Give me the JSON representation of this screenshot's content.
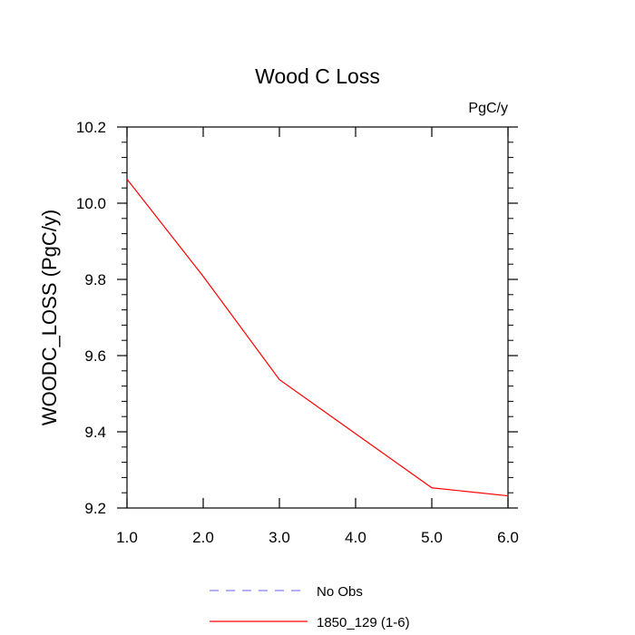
{
  "chart_data": {
    "type": "line",
    "title": "Wood C Loss",
    "units_label": "PgC/y",
    "xlabel": "",
    "ylabel": "WOODC_LOSS  (PgC/y)",
    "xlim": [
      1.0,
      6.0
    ],
    "ylim": [
      9.2,
      10.2
    ],
    "x_ticks": [
      1.0,
      2.0,
      3.0,
      4.0,
      5.0,
      6.0
    ],
    "x_tick_labels": [
      "1.0",
      "2.0",
      "3.0",
      "4.0",
      "5.0",
      "6.0"
    ],
    "y_ticks": [
      9.2,
      9.4,
      9.6,
      9.8,
      10.0,
      10.2
    ],
    "y_tick_labels": [
      "9.2",
      "9.4",
      "9.6",
      "9.8",
      "10.0",
      "10.2"
    ],
    "series": [
      {
        "name": "1850_129 (1-6)",
        "color": "#ff0000",
        "dash": "solid",
        "x": [
          1,
          2,
          3,
          4,
          5,
          6
        ],
        "values": [
          10.063,
          9.808,
          9.537,
          9.395,
          9.253,
          9.232
        ]
      }
    ],
    "legend": [
      {
        "label": "No Obs",
        "color": "#8080ff",
        "dash": "dashed"
      },
      {
        "label": "1850_129 (1-6)",
        "color": "#ff0000",
        "dash": "solid"
      }
    ],
    "legend_position": "bottom-center"
  }
}
